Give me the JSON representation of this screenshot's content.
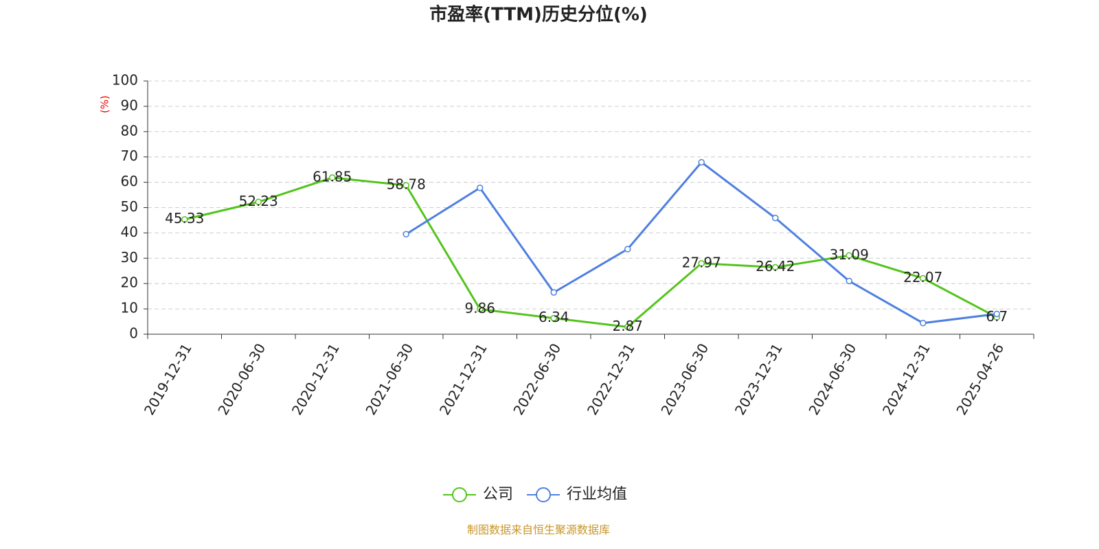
{
  "chart_data": {
    "type": "line",
    "title": "市盈率(TTM)历史分位(%)",
    "y_label": "(%)",
    "categories": [
      "2019-12-31",
      "2020-06-30",
      "2020-12-31",
      "2021-06-30",
      "2021-12-31",
      "2022-06-30",
      "2022-12-31",
      "2023-06-30",
      "2023-12-31",
      "2024-06-30",
      "2024-12-31",
      "2025-04-26"
    ],
    "series": [
      {
        "name": "公司",
        "color": "#52c41a",
        "values": [
          45.33,
          52.23,
          61.85,
          58.78,
          9.86,
          6.34,
          2.87,
          27.97,
          26.42,
          31.09,
          22.07,
          6.7
        ],
        "data_labels": true
      },
      {
        "name": "行业均值",
        "color": "#4e7fe0",
        "values": [
          null,
          null,
          null,
          39.5,
          57.8,
          16.5,
          33.6,
          67.9,
          45.9,
          21.0,
          4.4,
          8.0
        ],
        "data_labels": false
      }
    ],
    "ylim": [
      0,
      100
    ],
    "yticks": [
      0,
      10,
      20,
      30,
      40,
      50,
      60,
      70,
      80,
      90,
      100
    ],
    "grid": true,
    "source": "制图数据来自恒生聚源数据库"
  }
}
